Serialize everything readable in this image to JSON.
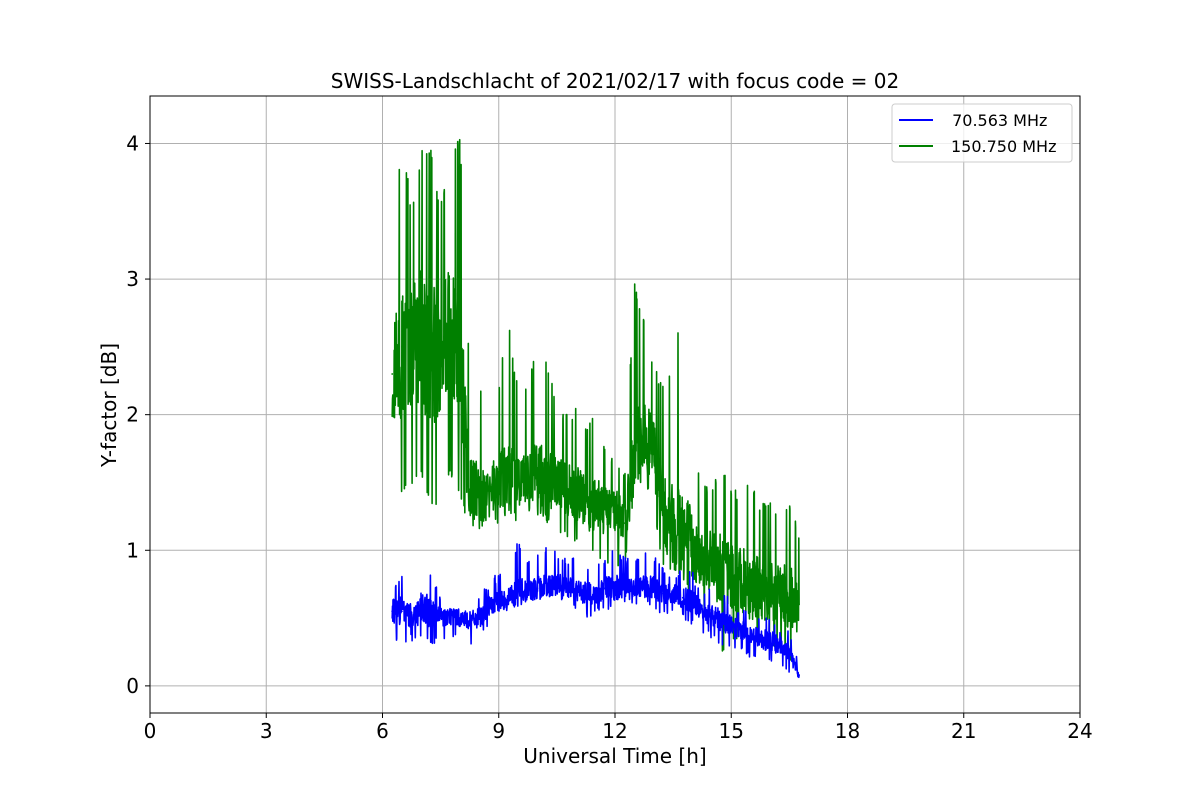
{
  "chart_data": {
    "type": "line",
    "title": "SWISS-Landschlacht of 2021/02/17 with focus code = 02",
    "xlabel": "Universal Time [h]",
    "ylabel": "Y-factor [dB]",
    "xlim": [
      0,
      24
    ],
    "ylim": [
      -0.2,
      4.35
    ],
    "xticks": [
      0,
      3,
      6,
      9,
      12,
      15,
      18,
      21,
      24
    ],
    "yticks": [
      0,
      1,
      2,
      3,
      4
    ],
    "grid": true,
    "legend_position": "top-right",
    "series": [
      {
        "name": " 70.563 MHz",
        "color": "#0000ff",
        "x": [
          6.25,
          6.5,
          6.75,
          7.0,
          7.25,
          7.5,
          7.75,
          8.0,
          8.25,
          8.5,
          8.75,
          9.0,
          9.25,
          9.5,
          9.75,
          10.0,
          10.25,
          10.5,
          10.75,
          11.0,
          11.25,
          11.5,
          11.75,
          12.0,
          12.25,
          12.5,
          12.75,
          13.0,
          13.25,
          13.5,
          13.75,
          14.0,
          14.25,
          14.5,
          14.75,
          15.0,
          15.25,
          15.5,
          15.75,
          16.0,
          16.25,
          16.5,
          16.75
        ],
        "y": [
          0.55,
          0.55,
          0.52,
          0.55,
          0.55,
          0.5,
          0.52,
          0.5,
          0.48,
          0.5,
          0.58,
          0.62,
          0.65,
          0.7,
          0.7,
          0.72,
          0.75,
          0.75,
          0.73,
          0.7,
          0.68,
          0.68,
          0.72,
          0.72,
          0.72,
          0.73,
          0.73,
          0.72,
          0.68,
          0.68,
          0.65,
          0.62,
          0.55,
          0.52,
          0.48,
          0.45,
          0.42,
          0.38,
          0.35,
          0.33,
          0.3,
          0.25,
          0.08
        ],
        "min": [
          0.3,
          0.32,
          0.33,
          0.32,
          0.3,
          0.33,
          0.35,
          0.35,
          0.3,
          0.33,
          0.42,
          0.5,
          0.55,
          0.58,
          0.58,
          0.6,
          0.62,
          0.6,
          0.6,
          0.55,
          0.5,
          0.52,
          0.55,
          0.55,
          0.58,
          0.6,
          0.58,
          0.58,
          0.5,
          0.52,
          0.48,
          0.45,
          0.38,
          0.35,
          0.3,
          0.28,
          0.25,
          0.2,
          0.18,
          0.15,
          0.12,
          0.1,
          0.0
        ],
        "max": [
          0.78,
          0.82,
          0.75,
          0.98,
          0.85,
          0.7,
          0.68,
          0.65,
          0.62,
          0.68,
          0.78,
          0.85,
          0.9,
          1.12,
          0.95,
          1.0,
          1.05,
          1.0,
          0.95,
          0.95,
          0.9,
          0.88,
          0.95,
          1.03,
          0.95,
          0.92,
          0.98,
          1.0,
          0.88,
          0.85,
          0.9,
          0.85,
          0.7,
          0.75,
          0.68,
          0.65,
          0.6,
          0.55,
          0.5,
          0.55,
          0.45,
          0.4,
          0.2
        ]
      },
      {
        "name": "150.750 MHz",
        "color": "#008000",
        "x": [
          6.25,
          6.5,
          6.75,
          7.0,
          7.25,
          7.5,
          7.75,
          8.0,
          8.25,
          8.5,
          8.75,
          9.0,
          9.25,
          9.5,
          9.75,
          10.0,
          10.25,
          10.5,
          10.75,
          11.0,
          11.25,
          11.5,
          11.75,
          12.0,
          12.25,
          12.5,
          12.75,
          13.0,
          13.25,
          13.5,
          13.75,
          14.0,
          14.25,
          14.5,
          14.75,
          15.0,
          15.25,
          15.5,
          15.75,
          16.0,
          16.25,
          16.5,
          16.75
        ],
        "y": [
          2.3,
          2.5,
          2.5,
          2.6,
          2.4,
          2.5,
          2.6,
          2.4,
          1.45,
          1.42,
          1.45,
          1.5,
          1.55,
          1.5,
          1.5,
          1.55,
          1.5,
          1.5,
          1.45,
          1.42,
          1.35,
          1.35,
          1.3,
          1.3,
          1.2,
          1.7,
          1.85,
          1.75,
          1.3,
          1.2,
          1.15,
          1.0,
          0.95,
          0.9,
          0.85,
          0.8,
          0.78,
          0.75,
          0.72,
          0.7,
          0.68,
          0.65,
          0.6
        ],
        "min": [
          1.45,
          1.42,
          1.45,
          1.55,
          1.3,
          1.35,
          1.55,
          1.4,
          1.15,
          1.15,
          1.2,
          1.2,
          1.25,
          1.2,
          1.2,
          1.25,
          1.2,
          1.15,
          1.1,
          1.05,
          1.0,
          0.95,
          0.9,
          0.9,
          0.85,
          1.45,
          1.5,
          1.3,
          0.85,
          0.85,
          0.8,
          0.6,
          0.55,
          0.3,
          0.25,
          0.3,
          0.35,
          0.3,
          0.3,
          0.3,
          0.25,
          0.2,
          0.1
        ],
        "max": [
          3.0,
          4.13,
          3.5,
          3.98,
          3.95,
          3.55,
          3.9,
          4.05,
          2.3,
          2.25,
          2.0,
          2.25,
          2.7,
          2.2,
          2.25,
          2.55,
          2.4,
          2.1,
          2.0,
          2.05,
          1.95,
          2.0,
          1.75,
          1.65,
          1.6,
          2.98,
          2.7,
          2.4,
          2.2,
          2.35,
          2.98,
          1.85,
          1.5,
          1.45,
          1.65,
          1.45,
          1.45,
          1.55,
          1.35,
          1.4,
          1.3,
          1.35,
          1.15
        ]
      }
    ]
  }
}
